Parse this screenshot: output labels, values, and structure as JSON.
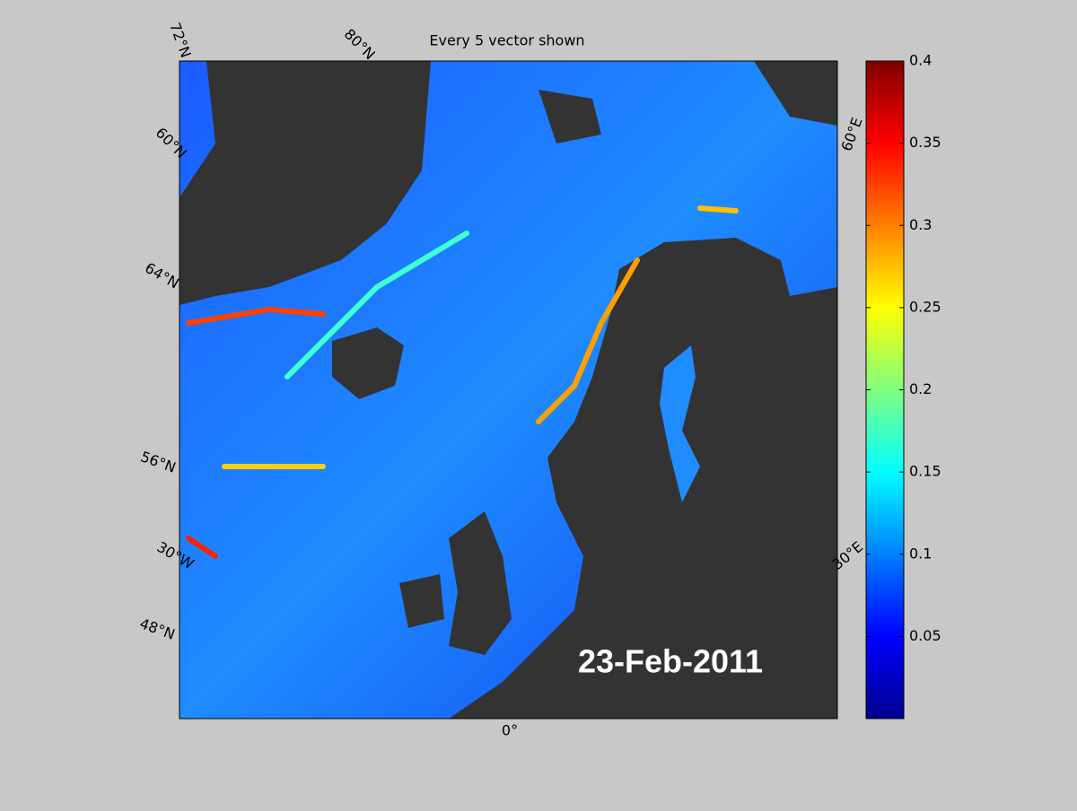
{
  "title": "Every 5 vector shown",
  "date": "23-Feb-2011",
  "graticule_labels": [
    "72°N",
    "80°N",
    "60°N",
    "64°N",
    "56°N",
    "30°W",
    "48°N",
    "0°",
    "60°E",
    "30°E"
  ],
  "colorbar": {
    "lim": [
      0,
      0.4
    ],
    "ticks": [
      0.05,
      0.1,
      0.15,
      0.2,
      0.25,
      0.3,
      0.35,
      0.4
    ]
  }
}
